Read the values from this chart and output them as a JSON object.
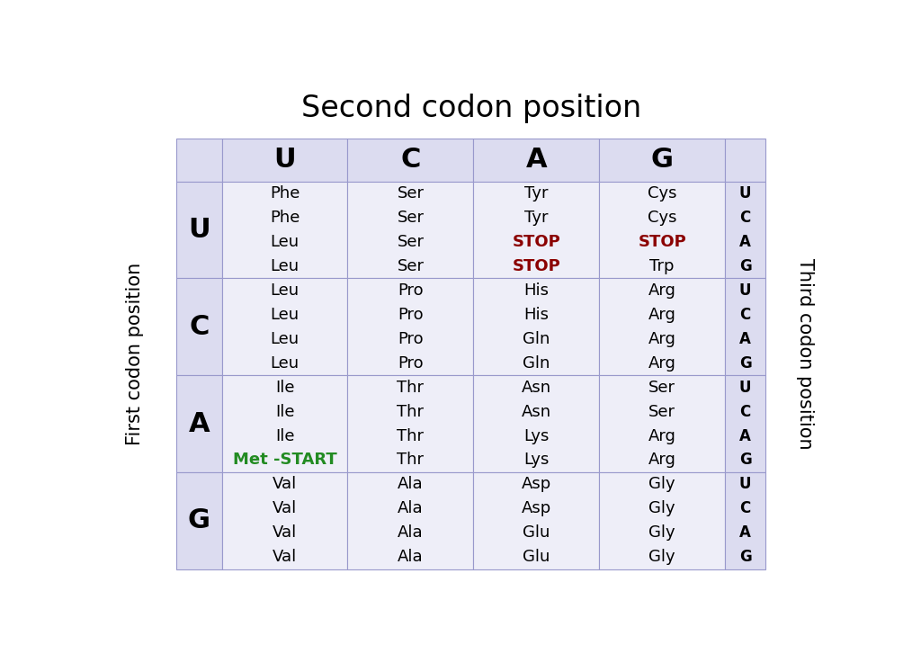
{
  "title": "Second codon position",
  "left_label": "First codon position",
  "right_label": "Third codon position",
  "second_bases": [
    "U",
    "C",
    "A",
    "G"
  ],
  "first_bases": [
    "U",
    "C",
    "A",
    "G"
  ],
  "third_bases": [
    "U",
    "C",
    "A",
    "G"
  ],
  "cell_bg": "#eeeef8",
  "header_bg": "#dcdcf0",
  "border_color": "#9999cc",
  "codon_data": [
    [
      [
        "Phe",
        "Phe",
        "Leu",
        "Leu"
      ],
      [
        "Ser",
        "Ser",
        "Ser",
        "Ser"
      ],
      [
        "Tyr",
        "Tyr",
        "STOP",
        "STOP"
      ],
      [
        "Cys",
        "Cys",
        "STOP",
        "Trp"
      ]
    ],
    [
      [
        "Leu",
        "Leu",
        "Leu",
        "Leu"
      ],
      [
        "Pro",
        "Pro",
        "Pro",
        "Pro"
      ],
      [
        "His",
        "His",
        "Gln",
        "Gln"
      ],
      [
        "Arg",
        "Arg",
        "Arg",
        "Arg"
      ]
    ],
    [
      [
        "Ile",
        "Ile",
        "Ile",
        "Met -START"
      ],
      [
        "Thr",
        "Thr",
        "Thr",
        "Thr"
      ],
      [
        "Asn",
        "Asn",
        "Lys",
        "Lys"
      ],
      [
        "Ser",
        "Ser",
        "Arg",
        "Arg"
      ]
    ],
    [
      [
        "Val",
        "Val",
        "Val",
        "Val"
      ],
      [
        "Ala",
        "Ala",
        "Ala",
        "Ala"
      ],
      [
        "Asp",
        "Asp",
        "Glu",
        "Glu"
      ],
      [
        "Gly",
        "Gly",
        "Gly",
        "Gly"
      ]
    ]
  ],
  "stop_color": "#8b0000",
  "start_color": "#228B22",
  "normal_color": "#000000"
}
